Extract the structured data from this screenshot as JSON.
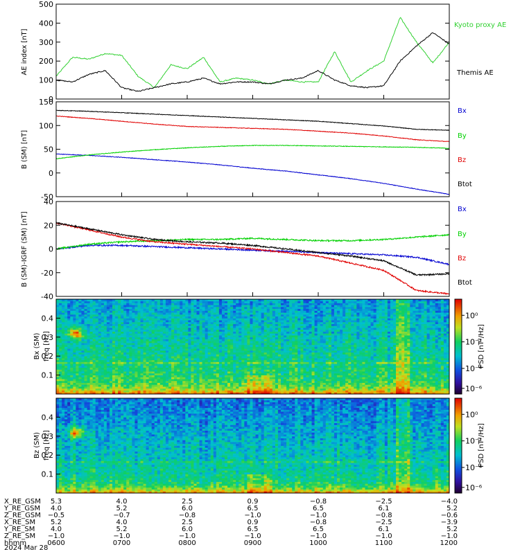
{
  "colors": {
    "black": "#000000",
    "blue": "#0000d0",
    "green": "#00d000",
    "red": "#e00000",
    "kyoto": "#30d030"
  },
  "panels": [
    {
      "id": "ae",
      "ylabel": "AE index [nT]",
      "ylim": [
        0,
        500
      ],
      "yticks": [
        "0",
        "100",
        "200",
        "300",
        "400",
        "500"
      ],
      "legend": [
        {
          "label": "Kyoto proxy AE",
          "color": "#30d030"
        },
        {
          "label": "Themis AE",
          "color": "#000000"
        }
      ]
    },
    {
      "id": "bsm",
      "ylabel": "B (SM) [nT]",
      "ylim": [
        -50,
        150
      ],
      "yticks": [
        "-50",
        "0",
        "50",
        "100",
        "150"
      ],
      "legend": [
        {
          "label": "Bx",
          "color": "#0000d0"
        },
        {
          "label": "By",
          "color": "#00d000"
        },
        {
          "label": "Bz",
          "color": "#e00000"
        },
        {
          "label": "Btot",
          "color": "#000000"
        }
      ]
    },
    {
      "id": "bigrf",
      "ylabel": "B (SM)-IGRF (SM) [nT]",
      "ylim": [
        -40,
        40
      ],
      "yticks": [
        "-40",
        "-20",
        "0",
        "20",
        "40"
      ],
      "legend": [
        {
          "label": "Bx",
          "color": "#0000d0"
        },
        {
          "label": "By",
          "color": "#00d000"
        },
        {
          "label": "Bz",
          "color": "#e00000"
        },
        {
          "label": "Btot",
          "color": "#000000"
        }
      ]
    },
    {
      "id": "bxspec",
      "ylabel1": "Bx (SM)",
      "ylabel2": "freq [Hz]",
      "yticks": [
        "0.1",
        "0.2",
        "0.3",
        "0.4"
      ],
      "zlabel": "PSD [nT²/Hz]",
      "zticks": [
        "10⁰",
        "10⁻²",
        "10⁻⁴",
        "10⁻⁶"
      ]
    },
    {
      "id": "bzspec",
      "ylabel1": "Bz (SM)",
      "ylabel2": "freq [Hz]",
      "yticks": [
        "0.1",
        "0.2",
        "0.3",
        "0.4"
      ],
      "zlabel": "PSD [nT²/Hz]",
      "zticks": [
        "10⁰",
        "10⁻²",
        "10⁻⁴",
        "10⁻⁶"
      ]
    }
  ],
  "ephemeris": {
    "rows": [
      {
        "label": "X_RE_GSM",
        "values": [
          "5.3",
          "4.0",
          "2.5",
          "0.9",
          "−0.8",
          "−2.5",
          "−4.0"
        ]
      },
      {
        "label": "Y_RE_GSM",
        "values": [
          "4.0",
          "5.2",
          "6.0",
          "6.5",
          "6.5",
          "6.1",
          "5.2"
        ]
      },
      {
        "label": "Z_RE_GSM",
        "values": [
          "−0.5",
          "−0.7",
          "−0.8",
          "−1.0",
          "−1.0",
          "−0.8",
          "−0.6"
        ]
      },
      {
        "label": "X_RE_SM",
        "values": [
          "5.2",
          "4.0",
          "2.5",
          "0.9",
          "−0.8",
          "−2.5",
          "−3.9"
        ]
      },
      {
        "label": "Y_RE_SM",
        "values": [
          "4.0",
          "5.2",
          "6.0",
          "6.5",
          "6.5",
          "6.1",
          "5.2"
        ]
      },
      {
        "label": "Z_RE_SM",
        "values": [
          "−1.0",
          "−1.0",
          "−1.0",
          "−1.0",
          "−1.0",
          "−1.0",
          "−1.0"
        ]
      },
      {
        "label": "hhmm",
        "values": [
          "0600",
          "0700",
          "0800",
          "0900",
          "1000",
          "1100",
          "1200"
        ]
      }
    ],
    "date": "2024 Mar 28"
  },
  "chart_data": [
    {
      "type": "line",
      "ylabel": "AE index [nT]",
      "ylim": [
        0,
        500
      ],
      "x": [
        0,
        0.25,
        0.5,
        0.75,
        1,
        1.25,
        1.5,
        1.75,
        2,
        2.25,
        2.5,
        2.75,
        3,
        3.25,
        3.5,
        3.75,
        4,
        4.25,
        4.5,
        4.75,
        5,
        5.25,
        5.5,
        5.75,
        6
      ],
      "series": [
        {
          "name": "Kyoto proxy AE",
          "values": [
            120,
            220,
            210,
            240,
            230,
            120,
            60,
            180,
            160,
            220,
            90,
            110,
            100,
            80,
            100,
            90,
            90,
            250,
            90,
            150,
            200,
            430,
            300,
            190,
            300
          ]
        },
        {
          "name": "Themis AE",
          "values": [
            100,
            90,
            130,
            150,
            60,
            40,
            60,
            80,
            90,
            110,
            80,
            90,
            90,
            80,
            100,
            110,
            150,
            100,
            70,
            60,
            70,
            200,
            280,
            350,
            290
          ]
        }
      ]
    },
    {
      "type": "line",
      "ylabel": "B (SM) [nT]",
      "ylim": [
        -50,
        150
      ],
      "x": [
        0,
        0.5,
        1,
        1.5,
        2,
        2.5,
        3,
        3.5,
        4,
        4.5,
        5,
        5.5,
        6
      ],
      "series": [
        {
          "name": "Bx",
          "values": [
            40,
            37,
            33,
            28,
            23,
            17,
            10,
            4,
            -4,
            -12,
            -22,
            -34,
            -45
          ]
        },
        {
          "name": "By",
          "values": [
            30,
            38,
            44,
            49,
            53,
            56,
            58,
            58,
            57,
            56,
            55,
            54,
            52
          ]
        },
        {
          "name": "Bz",
          "values": [
            120,
            115,
            109,
            103,
            98,
            96,
            94,
            92,
            88,
            84,
            78,
            70,
            66
          ]
        },
        {
          "name": "Btot",
          "values": [
            132,
            130,
            127,
            124,
            121,
            118,
            115,
            112,
            109,
            104,
            99,
            92,
            90
          ]
        }
      ]
    },
    {
      "type": "line",
      "ylabel": "B (SM)-IGRF (SM) [nT]",
      "ylim": [
        -40,
        40
      ],
      "x": [
        0,
        0.5,
        1,
        1.5,
        2,
        2.5,
        3,
        3.5,
        4,
        4.5,
        5,
        5.5,
        6
      ],
      "series": [
        {
          "name": "Bx",
          "values": [
            0,
            3,
            3,
            2,
            1,
            0,
            -1,
            -2,
            -3,
            -4,
            -5,
            -7,
            -13
          ]
        },
        {
          "name": "By",
          "values": [
            0,
            4,
            6,
            7,
            8,
            8,
            9,
            8,
            7,
            7,
            8,
            10,
            12
          ]
        },
        {
          "name": "Bz",
          "values": [
            22,
            16,
            10,
            6,
            4,
            2,
            0,
            -3,
            -6,
            -12,
            -18,
            -35,
            -38
          ]
        },
        {
          "name": "Btot",
          "values": [
            22,
            17,
            12,
            8,
            6,
            5,
            3,
            0,
            -3,
            -6,
            -10,
            -22,
            -21
          ]
        }
      ]
    },
    {
      "type": "heatmap",
      "title": "Bx (SM)",
      "ylabel": "freq [Hz]",
      "ylim": [
        0,
        0.5
      ],
      "zlabel": "PSD [nT²/Hz]",
      "zlog": true
    },
    {
      "type": "heatmap",
      "title": "Bz (SM)",
      "ylabel": "freq [Hz]",
      "ylim": [
        0,
        0.5
      ],
      "zlabel": "PSD [nT²/Hz]",
      "zlog": true
    }
  ]
}
